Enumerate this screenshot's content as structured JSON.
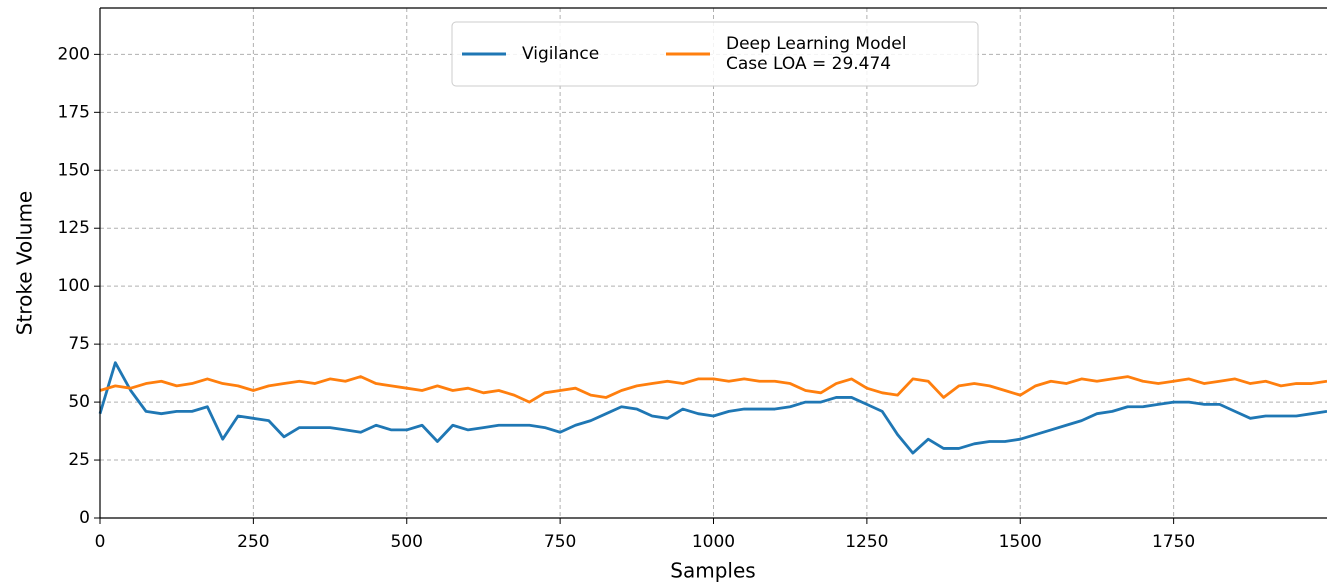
{
  "chart_data": {
    "type": "line",
    "xlabel": "Samples",
    "ylabel": "Stroke Volume",
    "x": [
      0,
      25,
      50,
      75,
      100,
      125,
      150,
      175,
      200,
      225,
      250,
      275,
      300,
      325,
      350,
      375,
      400,
      425,
      450,
      475,
      500,
      525,
      550,
      575,
      600,
      625,
      650,
      675,
      700,
      725,
      750,
      775,
      800,
      825,
      850,
      875,
      900,
      925,
      950,
      975,
      1000,
      1025,
      1050,
      1075,
      1100,
      1125,
      1150,
      1175,
      1200,
      1225,
      1250,
      1275,
      1300,
      1325,
      1350,
      1375,
      1400,
      1425,
      1450,
      1475,
      1500,
      1525,
      1550,
      1575,
      1600,
      1625,
      1650,
      1675,
      1700,
      1725,
      1750,
      1775,
      1800,
      1825,
      1850,
      1875,
      1900,
      1925,
      1950,
      1975,
      2000
    ],
    "series": [
      {
        "name": "Vigilance",
        "color": "#1f77b4",
        "values": [
          45,
          67,
          55,
          46,
          45,
          46,
          46,
          48,
          34,
          44,
          43,
          42,
          35,
          39,
          39,
          39,
          38,
          37,
          40,
          38,
          38,
          40,
          33,
          40,
          38,
          39,
          40,
          40,
          40,
          39,
          37,
          40,
          42,
          45,
          48,
          47,
          44,
          43,
          47,
          45,
          44,
          46,
          47,
          47,
          47,
          48,
          50,
          50,
          52,
          52,
          49,
          46,
          36,
          28,
          34,
          30,
          30,
          32,
          33,
          33,
          34,
          36,
          38,
          40,
          42,
          45,
          46,
          48,
          48,
          49,
          50,
          50,
          49,
          49,
          46,
          43,
          44,
          44,
          44,
          45,
          46
        ]
      },
      {
        "name": "Deep Learning Model\nCase LOA = 29.474",
        "color": "#ff7f0e",
        "values": [
          55,
          57,
          56,
          58,
          59,
          57,
          58,
          60,
          58,
          57,
          55,
          57,
          58,
          59,
          58,
          60,
          59,
          61,
          58,
          57,
          56,
          55,
          57,
          55,
          56,
          54,
          55,
          53,
          50,
          54,
          55,
          56,
          53,
          52,
          55,
          57,
          58,
          59,
          58,
          60,
          60,
          59,
          60,
          59,
          59,
          58,
          55,
          54,
          58,
          60,
          56,
          54,
          53,
          60,
          59,
          52,
          57,
          58,
          57,
          55,
          53,
          57,
          59,
          58,
          60,
          59,
          60,
          61,
          59,
          58,
          59,
          60,
          58,
          59,
          60,
          58,
          59,
          57,
          58,
          58,
          59
        ]
      }
    ],
    "xlim": [
      0,
      2000
    ],
    "ylim": [
      0,
      220
    ],
    "xticks": [
      0,
      250,
      500,
      750,
      1000,
      1250,
      1500,
      1750
    ],
    "yticks": [
      0,
      25,
      50,
      75,
      100,
      125,
      150,
      175,
      200
    ],
    "grid": true,
    "legend": "upper center"
  }
}
